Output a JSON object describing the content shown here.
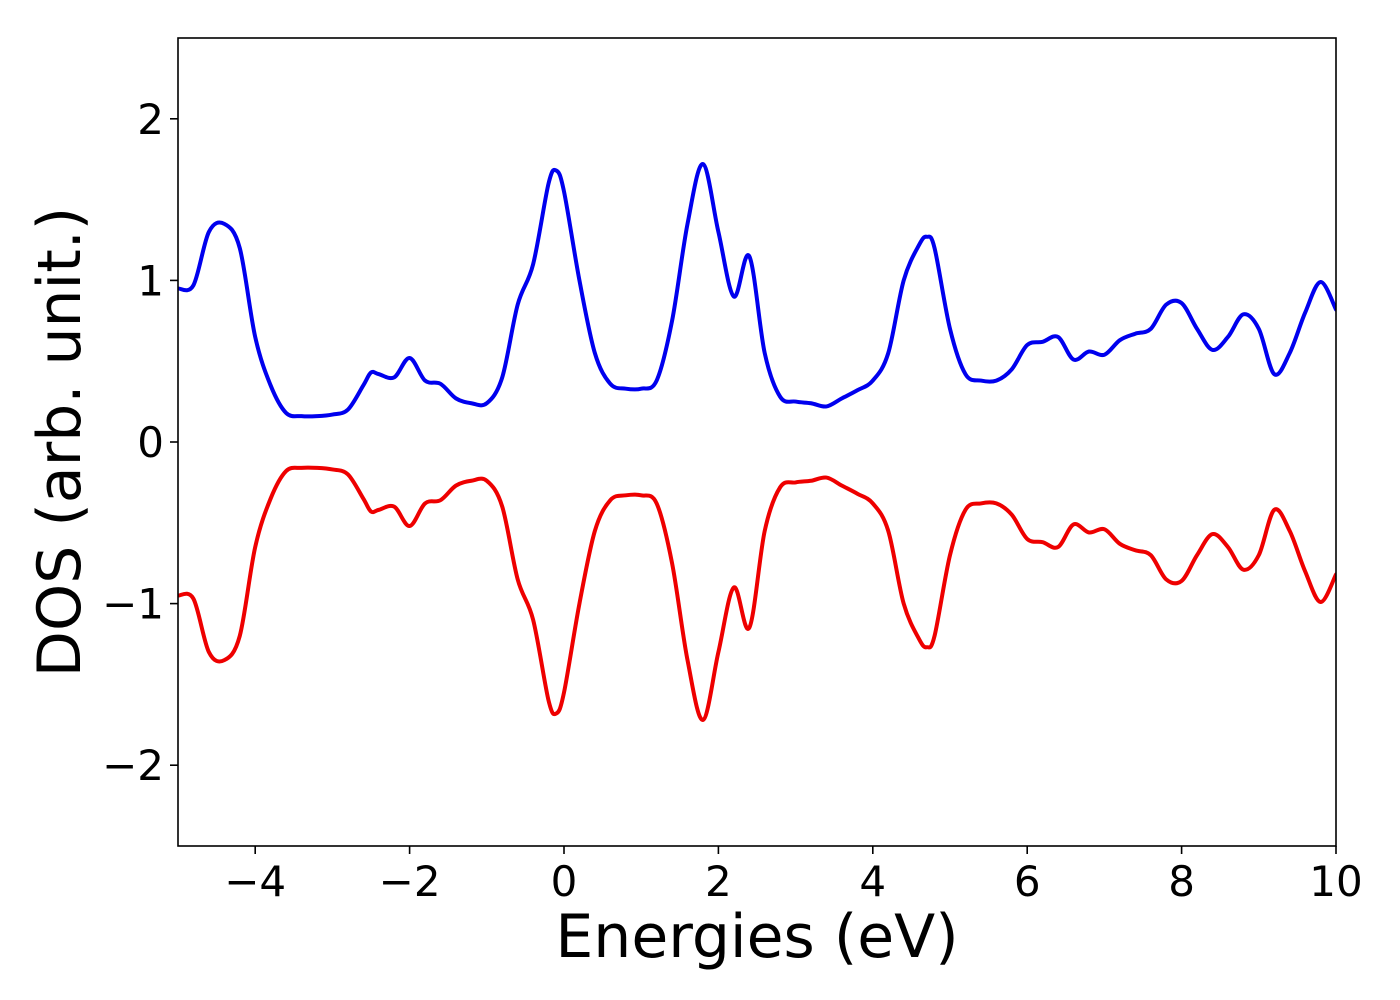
{
  "chart_data": {
    "type": "line",
    "title": "",
    "xlabel": "Energies (eV)",
    "ylabel": "DOS (arb. unit.)",
    "xlim": [
      -5,
      10
    ],
    "ylim": [
      -2.5,
      2.5
    ],
    "xticks": [
      -4,
      -2,
      0,
      2,
      4,
      6,
      8,
      10
    ],
    "yticks": [
      -2,
      -1,
      0,
      1,
      2
    ],
    "xtick_labels": [
      "−4",
      "−2",
      "0",
      "2",
      "4",
      "6",
      "8",
      "10"
    ],
    "ytick_labels": [
      "−2",
      "−1",
      "0",
      "1",
      "2"
    ],
    "grid": false,
    "legend": "none",
    "x": [
      -5.0,
      -4.8,
      -4.6,
      -4.4,
      -4.2,
      -4.0,
      -3.8,
      -3.6,
      -3.4,
      -3.2,
      -3.0,
      -2.8,
      -2.6,
      -2.5,
      -2.4,
      -2.2,
      -2.0,
      -1.8,
      -1.6,
      -1.4,
      -1.2,
      -1.0,
      -0.8,
      -0.6,
      -0.4,
      -0.2,
      -0.1,
      0.0,
      0.2,
      0.4,
      0.6,
      0.8,
      1.0,
      1.2,
      1.4,
      1.6,
      1.8,
      2.0,
      2.2,
      2.4,
      2.6,
      2.8,
      3.0,
      3.2,
      3.4,
      3.6,
      3.8,
      4.0,
      4.2,
      4.4,
      4.6,
      4.7,
      4.8,
      5.0,
      5.2,
      5.4,
      5.6,
      5.8,
      6.0,
      6.2,
      6.4,
      6.6,
      6.8,
      7.0,
      7.2,
      7.4,
      7.6,
      7.8,
      8.0,
      8.2,
      8.4,
      8.6,
      8.8,
      9.0,
      9.2,
      9.4,
      9.6,
      9.8,
      10.0
    ],
    "series": [
      {
        "color": "#0000ee",
        "values": [
          0.95,
          0.97,
          1.3,
          1.35,
          1.2,
          0.65,
          0.35,
          0.18,
          0.16,
          0.16,
          0.17,
          0.2,
          0.35,
          0.43,
          0.42,
          0.4,
          0.52,
          0.38,
          0.36,
          0.27,
          0.24,
          0.24,
          0.4,
          0.85,
          1.1,
          1.6,
          1.68,
          1.55,
          1.0,
          0.55,
          0.36,
          0.33,
          0.33,
          0.38,
          0.75,
          1.35,
          1.72,
          1.3,
          0.9,
          1.15,
          0.55,
          0.28,
          0.25,
          0.24,
          0.22,
          0.27,
          0.32,
          0.38,
          0.55,
          1.0,
          1.22,
          1.27,
          1.2,
          0.7,
          0.42,
          0.38,
          0.38,
          0.45,
          0.6,
          0.62,
          0.65,
          0.51,
          0.56,
          0.54,
          0.63,
          0.67,
          0.7,
          0.85,
          0.86,
          0.7,
          0.57,
          0.65,
          0.79,
          0.7,
          0.42,
          0.55,
          0.8,
          0.99,
          0.82
        ]
      },
      {
        "color": "#ee0000",
        "values": [
          -0.95,
          -0.97,
          -1.3,
          -1.35,
          -1.2,
          -0.65,
          -0.35,
          -0.18,
          -0.16,
          -0.16,
          -0.17,
          -0.2,
          -0.35,
          -0.43,
          -0.42,
          -0.4,
          -0.52,
          -0.38,
          -0.36,
          -0.27,
          -0.24,
          -0.24,
          -0.4,
          -0.85,
          -1.1,
          -1.6,
          -1.68,
          -1.55,
          -1.0,
          -0.55,
          -0.36,
          -0.33,
          -0.33,
          -0.38,
          -0.75,
          -1.35,
          -1.72,
          -1.3,
          -0.9,
          -1.15,
          -0.55,
          -0.28,
          -0.25,
          -0.24,
          -0.22,
          -0.27,
          -0.32,
          -0.38,
          -0.55,
          -1.0,
          -1.22,
          -1.27,
          -1.2,
          -0.7,
          -0.42,
          -0.38,
          -0.38,
          -0.45,
          -0.6,
          -0.62,
          -0.65,
          -0.51,
          -0.56,
          -0.54,
          -0.63,
          -0.67,
          -0.7,
          -0.85,
          -0.86,
          -0.7,
          -0.57,
          -0.65,
          -0.79,
          -0.7,
          -0.42,
          -0.55,
          -0.8,
          -0.99,
          -0.82
        ]
      }
    ]
  }
}
